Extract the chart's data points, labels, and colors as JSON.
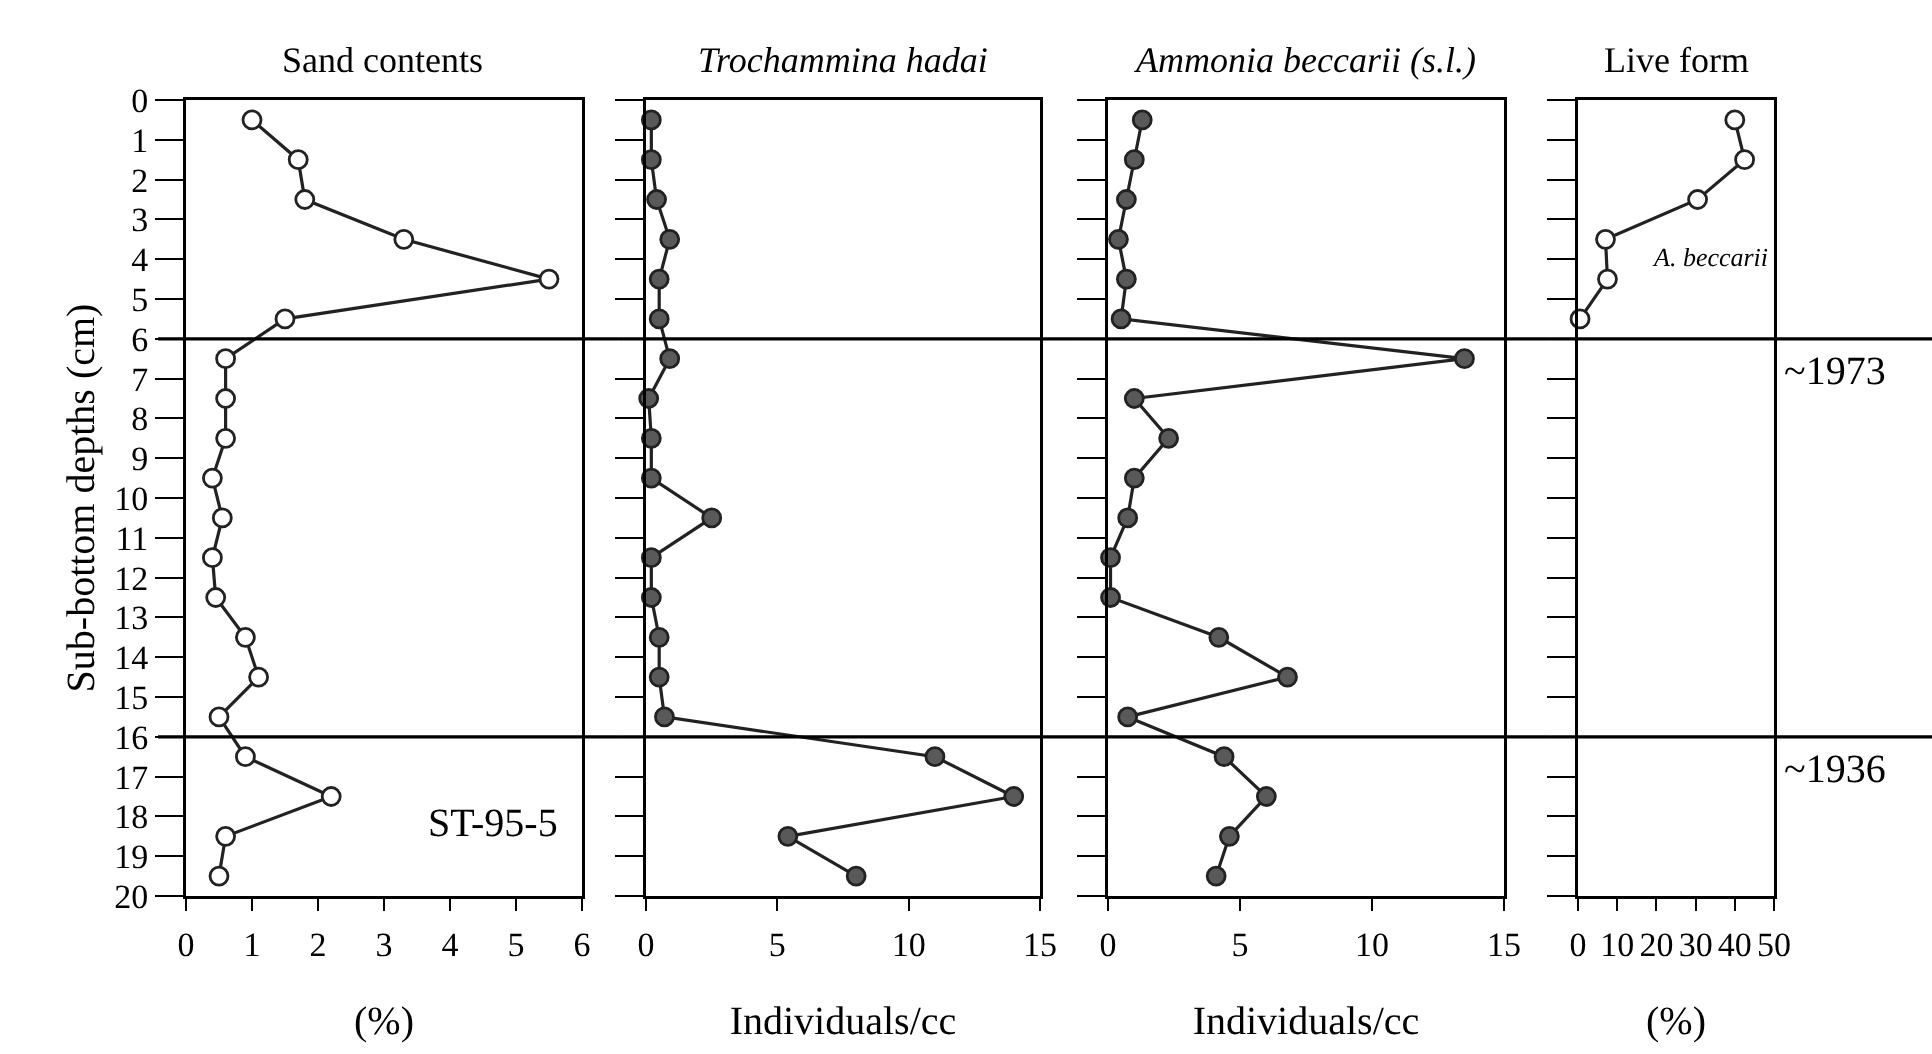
{
  "chart_data": [
    {
      "type": "line",
      "orientation": "horizontal",
      "title": "Sand contents",
      "xlabel": "(%)",
      "ylabel": "Sub-bottom depths (cm)",
      "marker": "circle",
      "x": [
        0.5,
        1.5,
        2.5,
        3.5,
        4.5,
        5.5,
        6.5,
        7.5,
        8.5,
        9.5,
        10.5,
        11.5,
        12.5,
        13.5,
        14.5,
        15.5,
        16.5,
        17.5,
        18.5,
        19.5
      ],
      "series": [
        {
          "color": "#ffffff",
          "values": [
            1.0,
            1.7,
            1.8,
            3.3,
            5.5,
            1.5,
            0.6,
            0.6,
            0.6,
            0.4,
            0.55,
            0.4,
            0.45,
            0.9,
            1.1,
            0.5,
            0.9,
            2.2,
            0.6,
            0.5
          ]
        }
      ],
      "xlim": [
        0,
        6
      ],
      "xticks": [
        0,
        1,
        2,
        3,
        4,
        5,
        6
      ],
      "ylim": [
        20,
        0
      ],
      "yticks": [
        0,
        1,
        2,
        3,
        4,
        5,
        6,
        7,
        8,
        9,
        10,
        11,
        12,
        13,
        14,
        15,
        16,
        17,
        18,
        19,
        20
      ],
      "ref_lines": [
        {
          "axis": "y",
          "value": 6
        },
        {
          "axis": "y",
          "value": 16
        }
      ],
      "annotations": [
        "ST-95-5"
      ]
    },
    {
      "type": "line",
      "orientation": "horizontal",
      "title": "Trochammina hadai",
      "xlabel": "Individuals/cc",
      "marker": "circle",
      "tick_labels": "x",
      "x": [
        0.5,
        1.5,
        2.5,
        3.5,
        4.5,
        5.5,
        6.5,
        7.5,
        8.5,
        9.5,
        10.5,
        11.5,
        12.5,
        13.5,
        14.5,
        15.5,
        16.5,
        17.5,
        18.5,
        19.5
      ],
      "series": [
        {
          "color": "#595959",
          "values": [
            0.2,
            0.2,
            0.4,
            0.9,
            0.5,
            0.5,
            0.9,
            0.1,
            0.2,
            0.2,
            2.5,
            0.2,
            0.2,
            0.5,
            0.5,
            0.7,
            11.0,
            14.0,
            5.4,
            8.0
          ]
        }
      ],
      "xlim": [
        0,
        15
      ],
      "xticks": [
        0,
        5,
        10,
        15
      ],
      "ylim": [
        20,
        0
      ],
      "yticks": [
        0,
        1,
        2,
        3,
        4,
        5,
        6,
        7,
        8,
        9,
        10,
        11,
        12,
        13,
        14,
        15,
        16,
        17,
        18,
        19,
        20
      ],
      "ref_lines": [
        {
          "axis": "y",
          "value": 6
        },
        {
          "axis": "y",
          "value": 16
        }
      ]
    },
    {
      "type": "line",
      "orientation": "horizontal",
      "title": "Ammonia beccarii (s.l.)",
      "xlabel": "Individuals/cc",
      "marker": "circle",
      "tick_labels": "x",
      "x": [
        0.5,
        1.5,
        2.5,
        3.5,
        4.5,
        5.5,
        6.5,
        7.5,
        8.5,
        9.5,
        10.5,
        11.5,
        12.5,
        13.5,
        14.5,
        15.5,
        16.5,
        17.5,
        18.5,
        19.5
      ],
      "series": [
        {
          "color": "#595959",
          "values": [
            1.3,
            1.0,
            0.7,
            0.4,
            0.7,
            0.5,
            13.5,
            1.0,
            2.3,
            1.0,
            0.75,
            0.1,
            0.1,
            4.2,
            6.8,
            0.75,
            4.4,
            6.0,
            4.6,
            4.1
          ]
        }
      ],
      "xlim": [
        0,
        15
      ],
      "xticks": [
        0,
        5,
        10,
        15
      ],
      "ylim": [
        20,
        0
      ],
      "yticks": [
        0,
        1,
        2,
        3,
        4,
        5,
        6,
        7,
        8,
        9,
        10,
        11,
        12,
        13,
        14,
        15,
        16,
        17,
        18,
        19,
        20
      ],
      "ref_lines": [
        {
          "axis": "y",
          "value": 6
        },
        {
          "axis": "y",
          "value": 16
        }
      ]
    },
    {
      "type": "line",
      "orientation": "horizontal",
      "title": "Live form",
      "xlabel": "(%)",
      "marker": "circle",
      "tick_labels": "x",
      "series": [
        {
          "name": "A. beccarii",
          "color": "#ffffff",
          "x": [
            0.5,
            1.5,
            2.5,
            3.5,
            4.5,
            5.5
          ],
          "values": [
            40,
            42.5,
            30.5,
            7,
            7.5,
            0.5
          ]
        }
      ],
      "xlim": [
        0,
        50
      ],
      "xticks": [
        0,
        10,
        20,
        30,
        40,
        50
      ],
      "ylim": [
        20,
        0
      ],
      "yticks": [
        0,
        1,
        2,
        3,
        4,
        5,
        6,
        7,
        8,
        9,
        10,
        11,
        12,
        13,
        14,
        15,
        16,
        17,
        18,
        19,
        20
      ],
      "ref_lines": [
        {
          "axis": "y",
          "value": 6
        },
        {
          "axis": "y",
          "value": 16
        }
      ],
      "annotations": [
        "~1973",
        "~1936"
      ]
    }
  ]
}
